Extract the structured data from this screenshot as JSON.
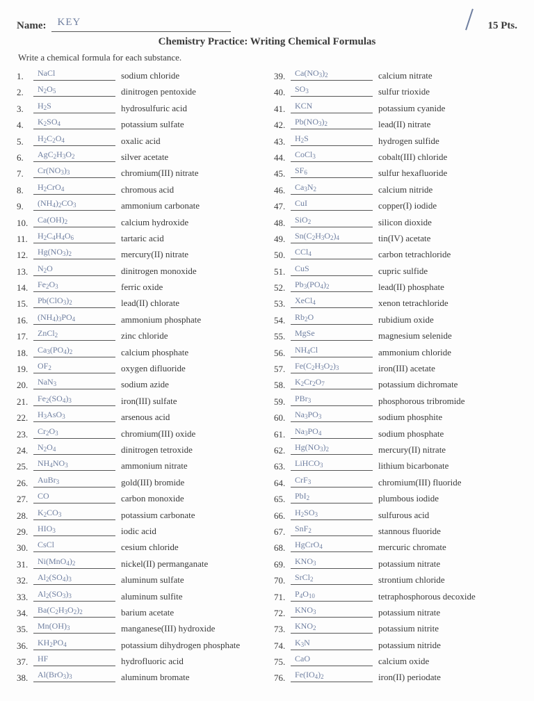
{
  "colors": {
    "ink": "#3a3a3a",
    "handwritten": "#6f7fa0",
    "rule": "#555555",
    "bg": "#fdfdfd"
  },
  "header": {
    "name_label": "Name:",
    "name_value": "KEY",
    "points": "15 Pts.",
    "title": "Chemistry Practice: Writing Chemical Formulas",
    "instruction": "Write a chemical formula for each substance."
  },
  "left": [
    {
      "n": "1.",
      "f": "NaCl",
      "t": "sodium chloride"
    },
    {
      "n": "2.",
      "f": "N<sub>2</sub>O<sub>5</sub>",
      "t": "dinitrogen pentoxide"
    },
    {
      "n": "3.",
      "f": "H<sub>2</sub>S",
      "t": "hydrosulfuric acid"
    },
    {
      "n": "4.",
      "f": "K<sub>2</sub>SO<sub>4</sub>",
      "t": "potassium sulfate"
    },
    {
      "n": "5.",
      "f": "H<sub>2</sub>C<sub>2</sub>O<sub>4</sub>",
      "t": "oxalic acid"
    },
    {
      "n": "6.",
      "f": "AgC<sub>2</sub>H<sub>3</sub>O<sub>2</sub>",
      "t": "silver acetate"
    },
    {
      "n": "7.",
      "f": "Cr(NO<sub>3</sub>)<sub>3</sub>",
      "t": "chromium(III) nitrate"
    },
    {
      "n": "8.",
      "f": "H<sub>2</sub>CrO<sub>4</sub>",
      "t": "chromous acid"
    },
    {
      "n": "9.",
      "f": "(NH<sub>4</sub>)<sub>2</sub>CO<sub>3</sub>",
      "t": "ammonium carbonate"
    },
    {
      "n": "10.",
      "f": "Ca(OH)<sub>2</sub>",
      "t": "calcium hydroxide"
    },
    {
      "n": "11.",
      "f": "H<sub>2</sub>C<sub>4</sub>H<sub>4</sub>O<sub>6</sub>",
      "t": "tartaric acid"
    },
    {
      "n": "12.",
      "f": "Hg(NO<sub>3</sub>)<sub>2</sub>",
      "t": "mercury(II) nitrate"
    },
    {
      "n": "13.",
      "f": "N<sub>2</sub>O",
      "t": "dinitrogen monoxide"
    },
    {
      "n": "14.",
      "f": "Fe<sub>2</sub>O<sub>3</sub>",
      "t": "ferric oxide"
    },
    {
      "n": "15.",
      "f": "Pb(ClO<sub>3</sub>)<sub>2</sub>",
      "t": "lead(II) chlorate"
    },
    {
      "n": "16.",
      "f": "(NH<sub>4</sub>)<sub>3</sub>PO<sub>4</sub>",
      "t": "ammonium phosphate"
    },
    {
      "n": "17.",
      "f": "ZnCl<sub>2</sub>",
      "t": "zinc chloride"
    },
    {
      "n": "18.",
      "f": "Ca<sub>3</sub>(PO<sub>4</sub>)<sub>2</sub>",
      "t": "calcium phosphate"
    },
    {
      "n": "19.",
      "f": "OF<sub>2</sub>",
      "t": "oxygen difluoride"
    },
    {
      "n": "20.",
      "f": "NaN<sub>3</sub>",
      "t": "sodium azide"
    },
    {
      "n": "21.",
      "f": "Fe<sub>2</sub>(SO<sub>4</sub>)<sub>3</sub>",
      "t": "iron(III) sulfate"
    },
    {
      "n": "22.",
      "f": "H<sub>3</sub>AsO<sub>3</sub>",
      "t": "arsenous acid"
    },
    {
      "n": "23.",
      "f": "Cr<sub>2</sub>O<sub>3</sub>",
      "t": "chromium(III) oxide"
    },
    {
      "n": "24.",
      "f": "N<sub>2</sub>O<sub>4</sub>",
      "t": "dinitrogen tetroxide"
    },
    {
      "n": "25.",
      "f": "NH<sub>4</sub>NO<sub>3</sub>",
      "t": "ammonium nitrate"
    },
    {
      "n": "26.",
      "f": "AuBr<sub>3</sub>",
      "t": "gold(III) bromide"
    },
    {
      "n": "27.",
      "f": "CO",
      "t": "carbon monoxide"
    },
    {
      "n": "28.",
      "f": "K<sub>2</sub>CO<sub>3</sub>",
      "t": "potassium carbonate"
    },
    {
      "n": "29.",
      "f": "HIO<sub>3</sub>",
      "t": "iodic acid"
    },
    {
      "n": "30.",
      "f": "CsCl",
      "t": "cesium chloride"
    },
    {
      "n": "31.",
      "f": "Ni(MnO<sub>4</sub>)<sub>2</sub>",
      "t": "nickel(II) permanganate"
    },
    {
      "n": "32.",
      "f": "Al<sub>2</sub>(SO<sub>4</sub>)<sub>3</sub>",
      "t": "aluminum sulfate"
    },
    {
      "n": "33.",
      "f": "Al<sub>2</sub>(SO<sub>3</sub>)<sub>3</sub>",
      "t": "aluminum sulfite"
    },
    {
      "n": "34.",
      "f": "Ba(C<sub>2</sub>H<sub>3</sub>O<sub>2</sub>)<sub>2</sub>",
      "t": "barium acetate"
    },
    {
      "n": "35.",
      "f": "Mn(OH)<sub>3</sub>",
      "t": "manganese(III) hydroxide"
    },
    {
      "n": "36.",
      "f": "KH<sub>2</sub>PO<sub>4</sub>",
      "t": "potassium dihydrogen phosphate"
    },
    {
      "n": "37.",
      "f": "HF",
      "t": "hydrofluoric acid"
    },
    {
      "n": "38.",
      "f": "Al(BrO<sub>3</sub>)<sub>3</sub>",
      "t": "aluminum bromate"
    }
  ],
  "right": [
    {
      "n": "39.",
      "f": "Ca(NO<sub>3</sub>)<sub>2</sub>",
      "t": "calcium nitrate"
    },
    {
      "n": "40.",
      "f": "SO<sub>3</sub>",
      "t": "sulfur trioxide"
    },
    {
      "n": "41.",
      "f": "KCN",
      "t": "potassium cyanide"
    },
    {
      "n": "42.",
      "f": "Pb(NO<sub>3</sub>)<sub>2</sub>",
      "t": "lead(II) nitrate"
    },
    {
      "n": "43.",
      "f": "H<sub>2</sub>S",
      "t": "hydrogen sulfide"
    },
    {
      "n": "44.",
      "f": "CoCl<sub>3</sub>",
      "t": "cobalt(III) chloride"
    },
    {
      "n": "45.",
      "f": "SF<sub>6</sub>",
      "t": "sulfur hexafluoride"
    },
    {
      "n": "46.",
      "f": "Ca<sub>3</sub>N<sub>2</sub>",
      "t": "calcium nitride"
    },
    {
      "n": "47.",
      "f": "CuI",
      "t": "copper(I) iodide"
    },
    {
      "n": "48.",
      "f": "SiO<sub>2</sub>",
      "t": "silicon dioxide"
    },
    {
      "n": "49.",
      "f": "Sn(C<sub>2</sub>H<sub>3</sub>O<sub>2</sub>)<sub>4</sub>",
      "t": "tin(IV) acetate"
    },
    {
      "n": "50.",
      "f": "CCl<sub>4</sub>",
      "t": "carbon tetrachloride"
    },
    {
      "n": "51.",
      "f": "CuS",
      "t": "cupric sulfide"
    },
    {
      "n": "52.",
      "f": "Pb<sub>3</sub>(PO<sub>4</sub>)<sub>2</sub>",
      "t": "lead(II) phosphate"
    },
    {
      "n": "53.",
      "f": "XeCl<sub>4</sub>",
      "t": "xenon tetrachloride"
    },
    {
      "n": "54.",
      "f": "Rb<sub>2</sub>O",
      "t": "rubidium oxide"
    },
    {
      "n": "55.",
      "f": "MgSe",
      "t": "magnesium selenide"
    },
    {
      "n": "56.",
      "f": "NH<sub>4</sub>Cl",
      "t": "ammonium chloride"
    },
    {
      "n": "57.",
      "f": "Fe(C<sub>2</sub>H<sub>3</sub>O<sub>2</sub>)<sub>3</sub>",
      "t": "iron(III) acetate"
    },
    {
      "n": "58.",
      "f": "K<sub>2</sub>Cr<sub>2</sub>O<sub>7</sub>",
      "t": "potassium dichromate"
    },
    {
      "n": "59.",
      "f": "PBr<sub>3</sub>",
      "t": "phosphorous tribromide"
    },
    {
      "n": "60.",
      "f": "Na<sub>3</sub>PO<sub>3</sub>",
      "t": "sodium phosphite"
    },
    {
      "n": "61.",
      "f": "Na<sub>3</sub>PO<sub>4</sub>",
      "t": "sodium phosphate"
    },
    {
      "n": "62.",
      "f": "Hg(NO<sub>3</sub>)<sub>2</sub>",
      "t": "mercury(II) nitrate"
    },
    {
      "n": "63.",
      "f": "LiHCO<sub>3</sub>",
      "t": "lithium bicarbonate"
    },
    {
      "n": "64.",
      "f": "CrF<sub>3</sub>",
      "t": "chromium(III) fluoride"
    },
    {
      "n": "65.",
      "f": "PbI<sub>2</sub>",
      "t": "plumbous iodide"
    },
    {
      "n": "66.",
      "f": "H<sub>2</sub>SO<sub>3</sub>",
      "t": "sulfurous acid"
    },
    {
      "n": "67.",
      "f": "SnF<sub>2</sub>",
      "t": "stannous fluoride"
    },
    {
      "n": "68.",
      "f": "HgCrO<sub>4</sub>",
      "t": "mercuric chromate"
    },
    {
      "n": "69.",
      "f": "KNO<sub>3</sub>",
      "t": "potassium nitrate"
    },
    {
      "n": "70.",
      "f": "SrCl<sub>2</sub>",
      "t": "strontium chloride"
    },
    {
      "n": "71.",
      "f": "P<sub>4</sub>O<sub>10</sub>",
      "t": "tetraphosphorous decoxide"
    },
    {
      "n": "72.",
      "f": "KNO<sub>3</sub>",
      "t": "potassium nitrate"
    },
    {
      "n": "73.",
      "f": "KNO<sub>2</sub>",
      "t": "potassium nitrite"
    },
    {
      "n": "74.",
      "f": "K<sub>3</sub>N",
      "t": "potassium nitride"
    },
    {
      "n": "75.",
      "f": "CaO",
      "t": "calcium oxide"
    },
    {
      "n": "76.",
      "f": "Fe(IO<sub>4</sub>)<sub>2</sub>",
      "t": "iron(II) periodate"
    }
  ]
}
